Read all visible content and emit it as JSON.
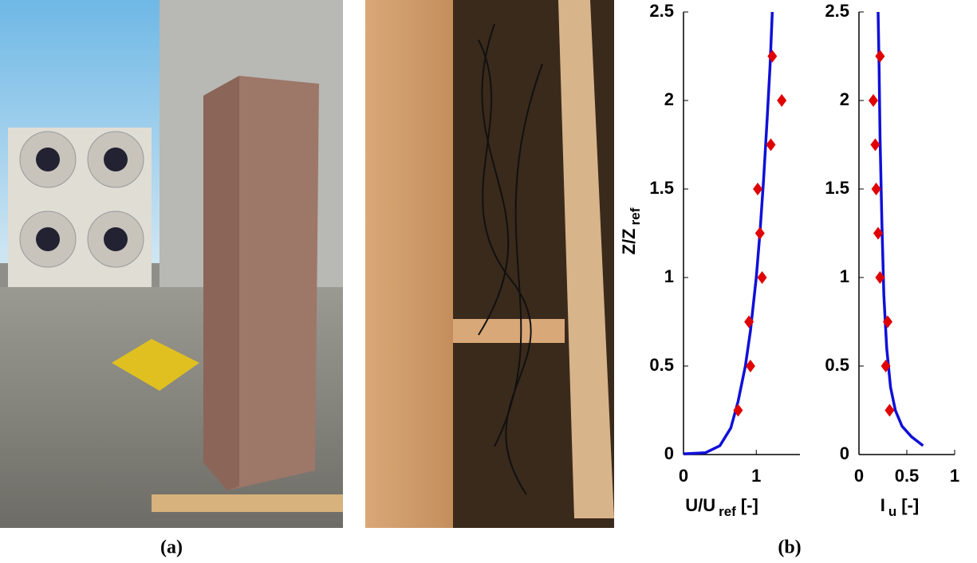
{
  "figure": {
    "captions": [
      "(a)",
      "(b)"
    ]
  },
  "chart_data": [
    {
      "type": "scatter-line",
      "y_label": {
        "main": "Z/Z",
        "sub": "ref"
      },
      "x_label": {
        "main": "U/U",
        "sub": "ref",
        "suffix": "[-]"
      },
      "xlim": [
        0,
        1.6
      ],
      "ylim": [
        0,
        2.5
      ],
      "xticks": [
        0,
        1
      ],
      "yticks": [
        0,
        0.5,
        1,
        1.5,
        2,
        2.5
      ],
      "line": {
        "color": "#1010d8",
        "x": [
          0,
          0.3,
          0.5,
          0.65,
          0.75,
          0.85,
          0.92,
          1.0,
          1.05,
          1.1,
          1.15,
          1.19,
          1.22
        ],
        "y": [
          0.004,
          0.01,
          0.05,
          0.15,
          0.3,
          0.5,
          0.7,
          1.0,
          1.25,
          1.55,
          1.9,
          2.2,
          2.5
        ]
      },
      "points": {
        "color": "#e00000",
        "x": [
          0.75,
          0.92,
          0.9,
          1.08,
          1.05,
          1.02,
          1.2,
          1.35,
          1.22
        ],
        "y": [
          0.25,
          0.5,
          0.75,
          1.0,
          1.25,
          1.5,
          1.75,
          2.0,
          2.25
        ]
      }
    },
    {
      "type": "scatter-line",
      "x_label": {
        "main": "I",
        "sub": "u",
        "suffix": "[-]"
      },
      "xlim": [
        0,
        1
      ],
      "ylim": [
        0,
        2.5
      ],
      "xticks": [
        0,
        0.5,
        1
      ],
      "yticks": [
        0,
        0.5,
        1,
        1.5,
        2,
        2.5
      ],
      "line": {
        "color": "#1010d8",
        "x": [
          0.67,
          0.55,
          0.45,
          0.38,
          0.33,
          0.29,
          0.26,
          0.24,
          0.22,
          0.21,
          0.2
        ],
        "y": [
          0.05,
          0.1,
          0.16,
          0.25,
          0.38,
          0.6,
          0.9,
          1.3,
          1.8,
          2.2,
          2.5
        ]
      },
      "points": {
        "color": "#e00000",
        "x": [
          0.32,
          0.28,
          0.3,
          0.22,
          0.2,
          0.18,
          0.17,
          0.15,
          0.22
        ],
        "y": [
          0.25,
          0.5,
          0.75,
          1.0,
          1.25,
          1.5,
          1.75,
          2.0,
          2.25
        ]
      }
    }
  ]
}
